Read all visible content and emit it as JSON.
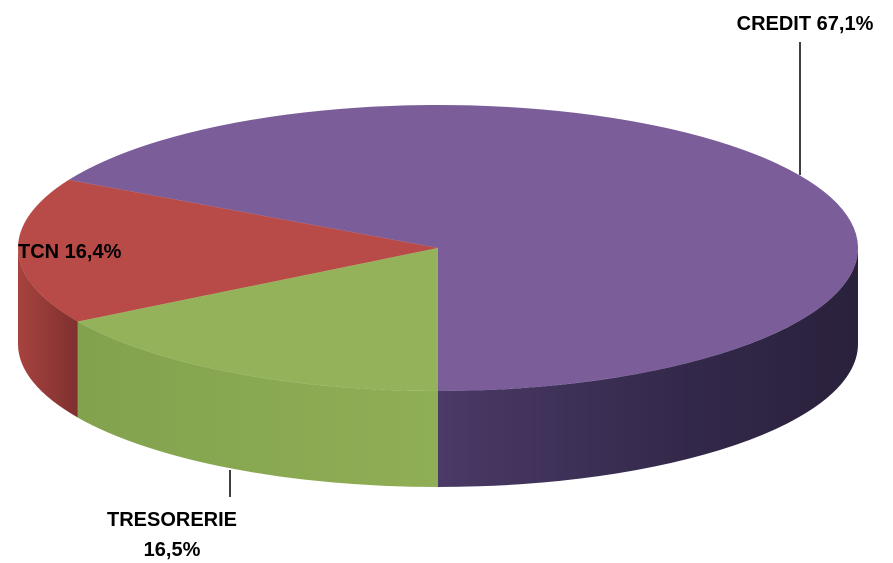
{
  "chart_data": {
    "type": "pie",
    "style": "3d",
    "title": "",
    "legend": "none",
    "slices": [
      {
        "name": "CREDIT",
        "value": 67.1,
        "label_line1": "CREDIT 67,1%",
        "label_line2": "",
        "color": "#7B5E99",
        "side_color": "#3A2D52"
      },
      {
        "name": "TRESORERIE",
        "value": 16.5,
        "label_line1": "TRESORERIE",
        "label_line2": "16,5%",
        "color": "#B84A47",
        "side_color": "#8A3634"
      },
      {
        "name": "TCN",
        "value": 16.4,
        "label_line1": "TCN 16,4%",
        "label_line2": "",
        "color": "#94B25A",
        "side_color": "#7E9A4C"
      }
    ]
  }
}
